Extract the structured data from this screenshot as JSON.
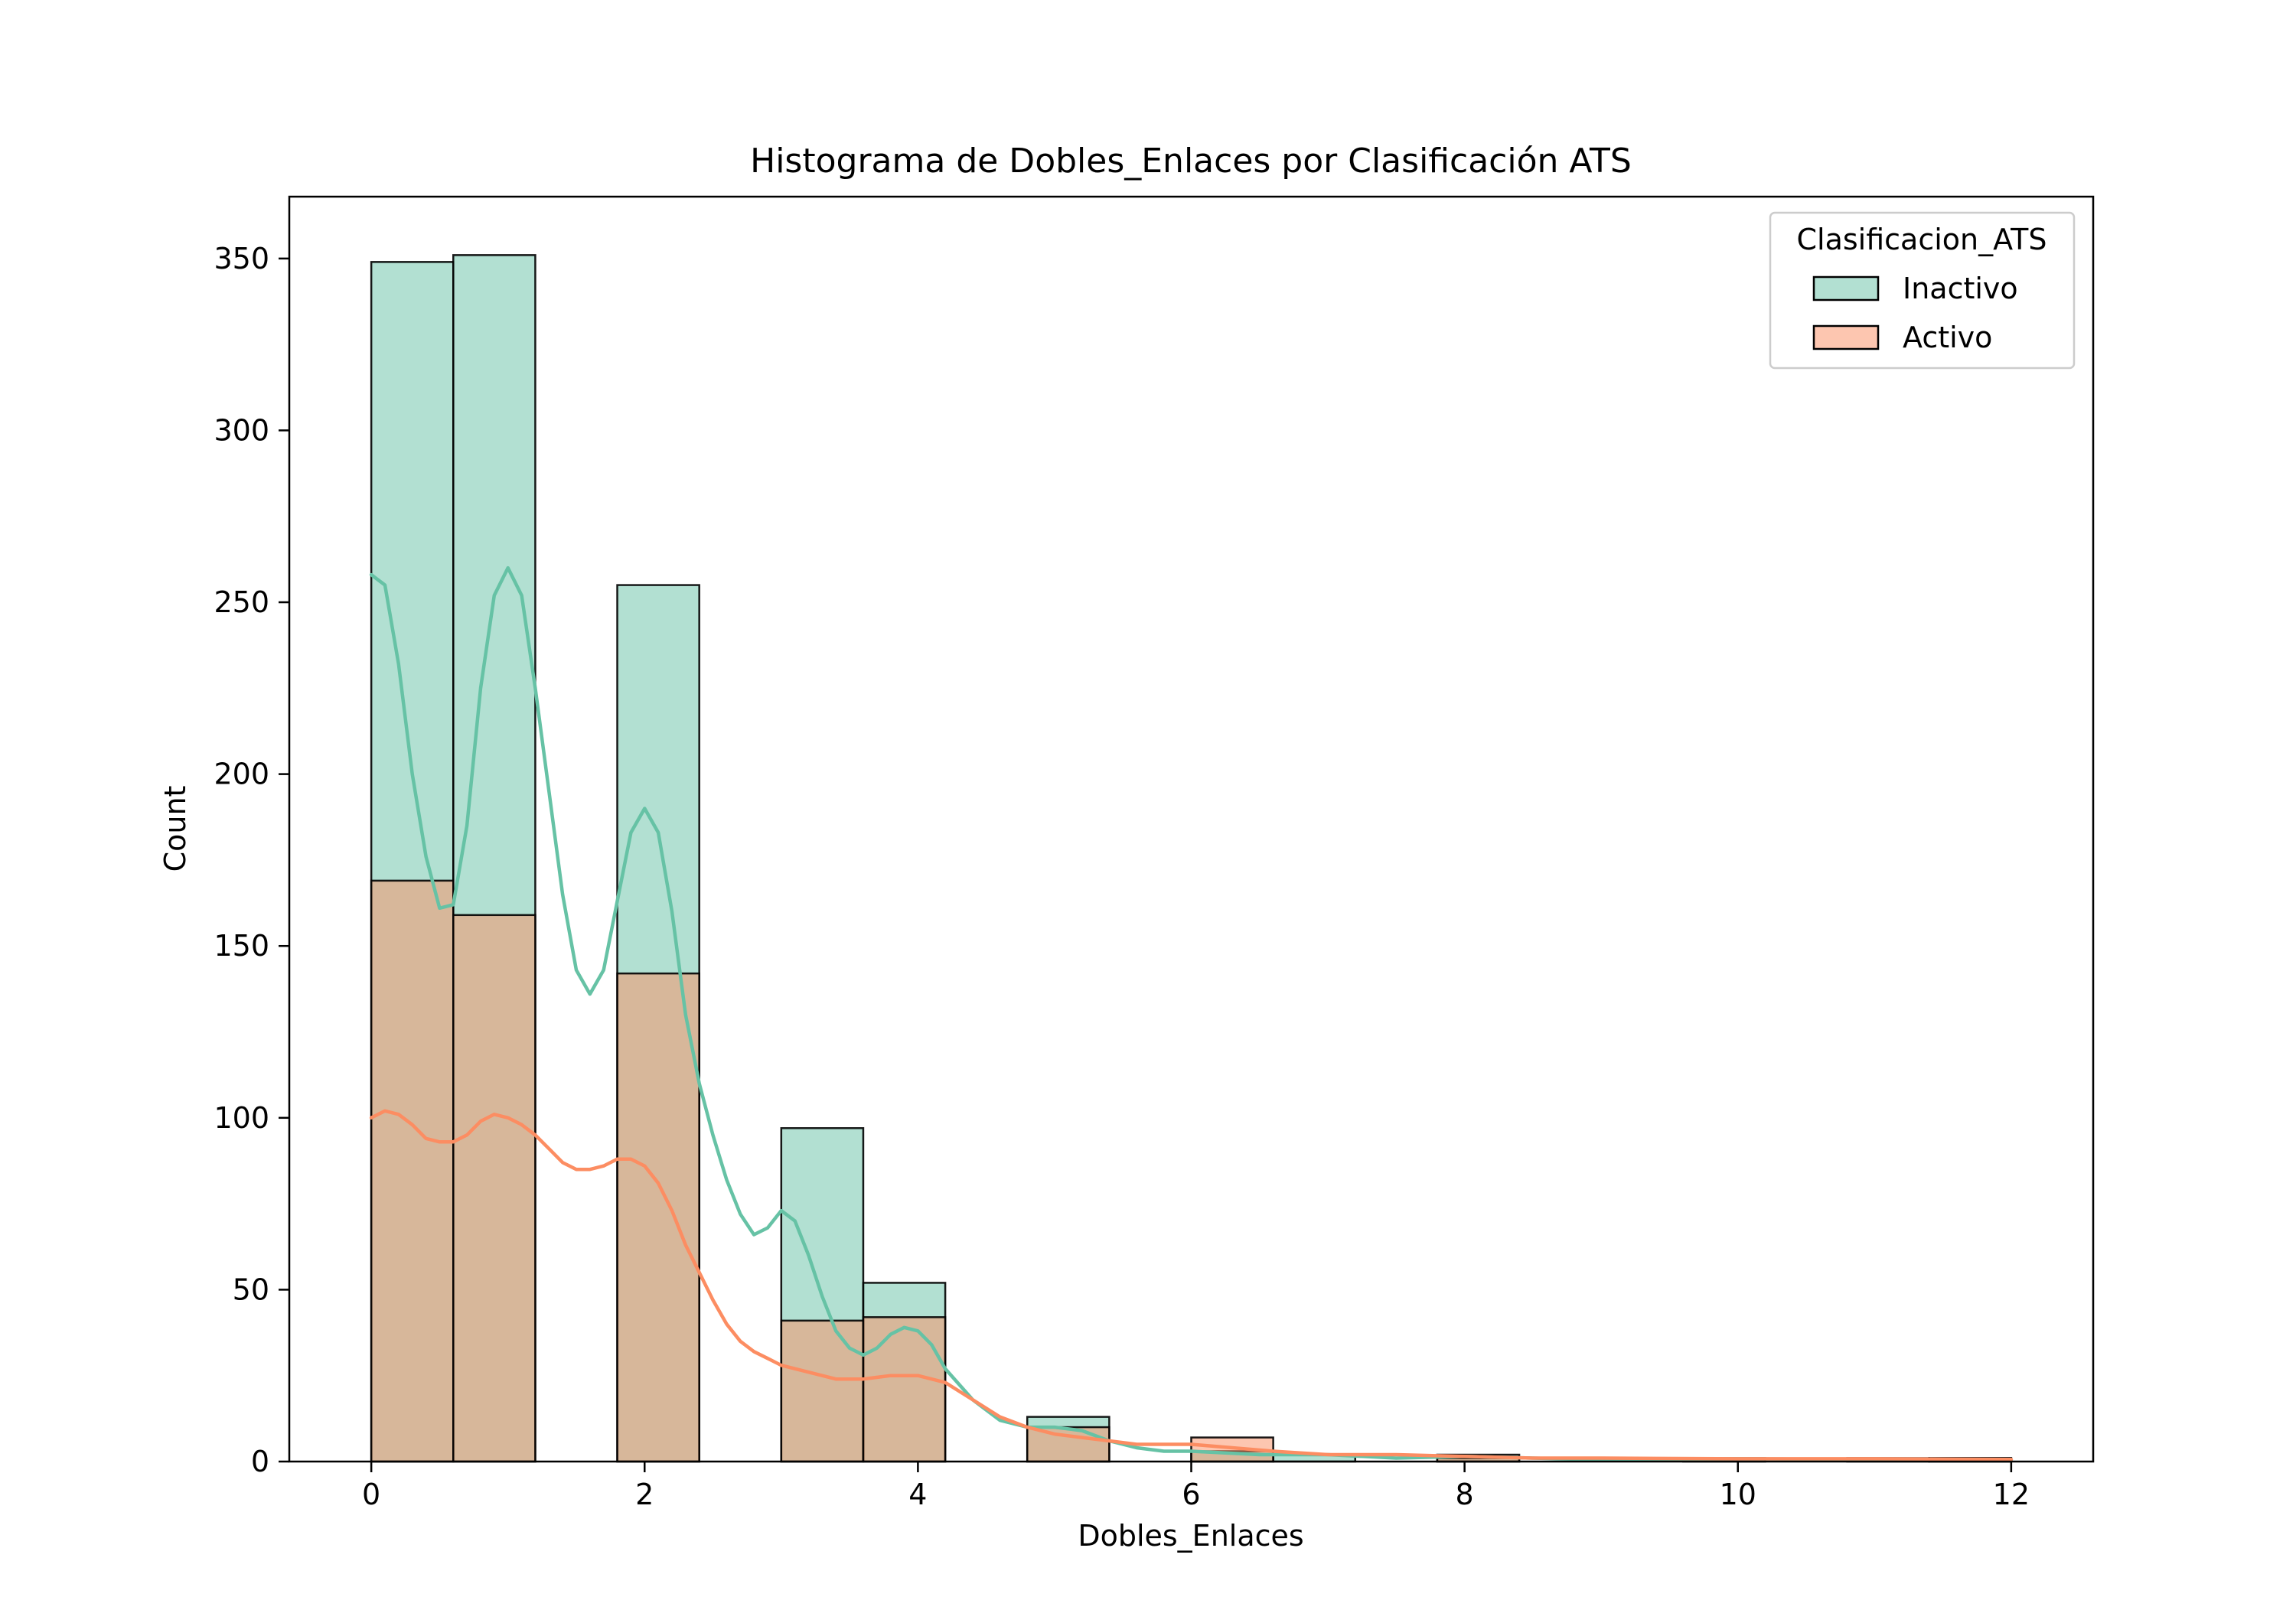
{
  "chart_data": {
    "type": "bar",
    "title": "Histograma de Dobles_Enlaces por Clasificación ATS",
    "xlabel": "Dobles_Enlaces",
    "ylabel": "Count",
    "xlim": [
      -0.6,
      12.6
    ],
    "ylim": [
      0,
      368
    ],
    "xticks": [
      0,
      2,
      4,
      6,
      8,
      10,
      12
    ],
    "yticks": [
      0,
      50,
      100,
      150,
      200,
      250,
      300,
      350
    ],
    "bin_width": 0.6,
    "grid": false,
    "legend": {
      "title": "Clasificacion_ATS",
      "position": "top-right"
    },
    "series": [
      {
        "name": "Inactivo",
        "color": "#66c2a5",
        "bins": [
          {
            "x0": 0.0,
            "count": 349
          },
          {
            "x0": 0.6,
            "count": 351
          },
          {
            "x0": 1.8,
            "count": 255
          },
          {
            "x0": 3.0,
            "count": 97
          },
          {
            "x0": 3.6,
            "count": 52
          },
          {
            "x0": 4.8,
            "count": 13
          },
          {
            "x0": 6.0,
            "count": 3
          },
          {
            "x0": 6.6,
            "count": 2
          },
          {
            "x0": 7.8,
            "count": 2
          },
          {
            "x0": 9.6,
            "count": 1
          },
          {
            "x0": 10.8,
            "count": 1
          },
          {
            "x0": 11.4,
            "count": 1
          }
        ],
        "kde": [
          [
            0,
            258
          ],
          [
            0.1,
            255
          ],
          [
            0.2,
            232
          ],
          [
            0.3,
            200
          ],
          [
            0.4,
            176
          ],
          [
            0.5,
            161
          ],
          [
            0.6,
            162
          ],
          [
            0.7,
            185
          ],
          [
            0.8,
            225
          ],
          [
            0.9,
            252
          ],
          [
            1.0,
            260
          ],
          [
            1.1,
            252
          ],
          [
            1.2,
            225
          ],
          [
            1.3,
            195
          ],
          [
            1.4,
            165
          ],
          [
            1.5,
            143
          ],
          [
            1.6,
            136
          ],
          [
            1.7,
            143
          ],
          [
            1.8,
            163
          ],
          [
            1.9,
            183
          ],
          [
            2.0,
            190
          ],
          [
            2.1,
            183
          ],
          [
            2.2,
            160
          ],
          [
            2.3,
            130
          ],
          [
            2.4,
            110
          ],
          [
            2.5,
            95
          ],
          [
            2.6,
            82
          ],
          [
            2.7,
            72
          ],
          [
            2.8,
            66
          ],
          [
            2.9,
            68
          ],
          [
            3.0,
            73
          ],
          [
            3.1,
            70
          ],
          [
            3.2,
            60
          ],
          [
            3.3,
            48
          ],
          [
            3.4,
            38
          ],
          [
            3.5,
            33
          ],
          [
            3.6,
            31
          ],
          [
            3.7,
            33
          ],
          [
            3.8,
            37
          ],
          [
            3.9,
            39
          ],
          [
            4.0,
            38
          ],
          [
            4.1,
            34
          ],
          [
            4.2,
            27
          ],
          [
            4.4,
            18
          ],
          [
            4.6,
            12
          ],
          [
            4.8,
            10
          ],
          [
            5.0,
            10
          ],
          [
            5.2,
            9
          ],
          [
            5.4,
            6
          ],
          [
            5.6,
            4
          ],
          [
            5.8,
            3
          ],
          [
            6.0,
            3
          ],
          [
            6.5,
            2
          ],
          [
            7.0,
            2
          ],
          [
            7.5,
            1
          ],
          [
            8.0,
            1.5
          ],
          [
            8.5,
            1
          ],
          [
            9.0,
            0.5
          ],
          [
            10.0,
            0.8
          ],
          [
            11.0,
            0.6
          ],
          [
            12.0,
            0.5
          ]
        ]
      },
      {
        "name": "Activo",
        "color": "#fc8d62",
        "bins": [
          {
            "x0": 0.0,
            "count": 169
          },
          {
            "x0": 0.6,
            "count": 159
          },
          {
            "x0": 1.8,
            "count": 142
          },
          {
            "x0": 3.0,
            "count": 41
          },
          {
            "x0": 3.6,
            "count": 42
          },
          {
            "x0": 4.8,
            "count": 10
          },
          {
            "x0": 6.0,
            "count": 7
          },
          {
            "x0": 7.8,
            "count": 1
          },
          {
            "x0": 11.4,
            "count": 1
          }
        ],
        "kde": [
          [
            0,
            100
          ],
          [
            0.1,
            102
          ],
          [
            0.2,
            101
          ],
          [
            0.3,
            98
          ],
          [
            0.4,
            94
          ],
          [
            0.5,
            93
          ],
          [
            0.6,
            93
          ],
          [
            0.7,
            95
          ],
          [
            0.8,
            99
          ],
          [
            0.9,
            101
          ],
          [
            1.0,
            100
          ],
          [
            1.1,
            98
          ],
          [
            1.2,
            95
          ],
          [
            1.3,
            91
          ],
          [
            1.4,
            87
          ],
          [
            1.5,
            85
          ],
          [
            1.6,
            85
          ],
          [
            1.7,
            86
          ],
          [
            1.8,
            88
          ],
          [
            1.9,
            88
          ],
          [
            2.0,
            86
          ],
          [
            2.1,
            81
          ],
          [
            2.2,
            73
          ],
          [
            2.3,
            63
          ],
          [
            2.4,
            55
          ],
          [
            2.5,
            47
          ],
          [
            2.6,
            40
          ],
          [
            2.7,
            35
          ],
          [
            2.8,
            32
          ],
          [
            2.9,
            30
          ],
          [
            3.0,
            28
          ],
          [
            3.2,
            26
          ],
          [
            3.4,
            24
          ],
          [
            3.6,
            24
          ],
          [
            3.8,
            25
          ],
          [
            4.0,
            25
          ],
          [
            4.2,
            23
          ],
          [
            4.4,
            18
          ],
          [
            4.6,
            13
          ],
          [
            4.8,
            10
          ],
          [
            5.0,
            8
          ],
          [
            5.2,
            7
          ],
          [
            5.4,
            6
          ],
          [
            5.6,
            5
          ],
          [
            5.8,
            5
          ],
          [
            6.0,
            5
          ],
          [
            6.3,
            4
          ],
          [
            6.6,
            3
          ],
          [
            7.0,
            2
          ],
          [
            7.5,
            2
          ],
          [
            8.0,
            1.5
          ],
          [
            8.5,
            1
          ],
          [
            9.0,
            1
          ],
          [
            10.0,
            0.8
          ],
          [
            11.0,
            0.8
          ],
          [
            12.0,
            0.6
          ]
        ]
      }
    ]
  }
}
